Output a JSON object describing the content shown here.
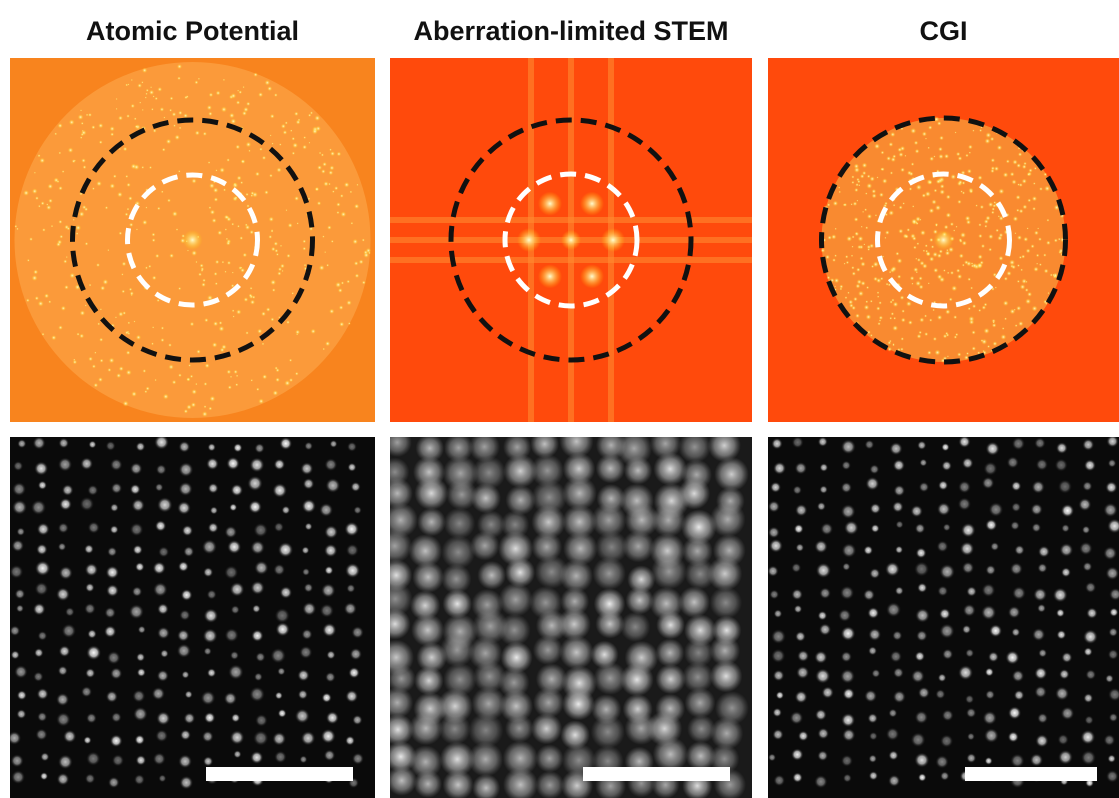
{
  "panels": [
    {
      "title": "Atomic Potential"
    },
    {
      "title": "Aberration-limited STEM"
    },
    {
      "title": "CGI"
    }
  ]
}
